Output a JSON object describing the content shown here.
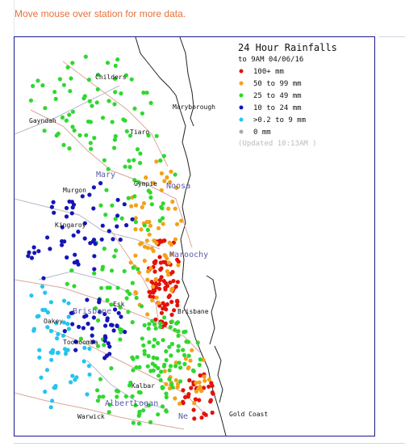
{
  "instruction": "Move mouse over station for more data.",
  "legend": {
    "title": "24 Hour Rainfalls",
    "subtitle": "to 9AM 04/06/16",
    "entries": [
      {
        "label": "100+ mm",
        "color": "#e3120b"
      },
      {
        "label": "50  to 99 mm",
        "color": "#f4a11a"
      },
      {
        "label": "25  to 49 mm",
        "color": "#2fd82f"
      },
      {
        "label": "10  to 24 mm",
        "color": "#1515b8"
      },
      {
        "label": ">0.2 to 9 mm",
        "color": "#24c4f0"
      },
      {
        "label": "0 mm",
        "color": "#aaaaaa"
      }
    ],
    "updated": "(Updated 10:13AM  )"
  },
  "places": {
    "childers": "Childers",
    "maryborough": "Maryborough",
    "gayndah": "Gayndah",
    "tiaro": "Tiaro",
    "mary": "Mary",
    "gympie": "Gympie",
    "noosa": "Noosa",
    "murgon": "Murgon",
    "kingaroy": "Kingaroy",
    "maroochy": "Maroochy",
    "esk": "Esk",
    "brisbane_basin": "Brisbane",
    "brisbane_city": "Brisbane",
    "oakey": "Oakey",
    "toowoomba": "Toowoomba",
    "kalbar": "Kalbar",
    "albertlogan": "AlbertLogan",
    "warwick": "Warwick",
    "nerang": "Ne",
    "gold_coast": "Gold Coast"
  }
}
